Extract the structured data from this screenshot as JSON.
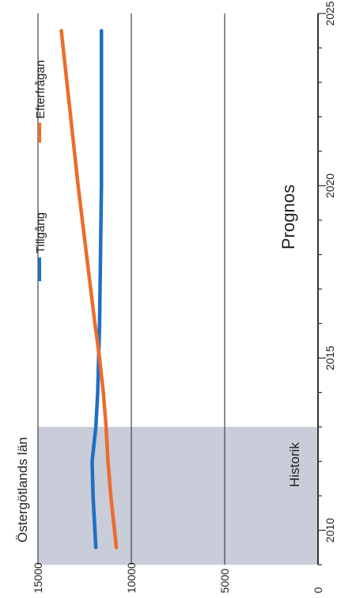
{
  "chart_data": {
    "type": "line",
    "title": "Östergötlands län",
    "x_range": [
      2009,
      2025
    ],
    "ylim": [
      0,
      15000
    ],
    "y_ticks": [
      "0",
      "5000",
      "10000",
      "15000"
    ],
    "x_ticks": [
      "2010",
      "2015",
      "2020",
      "2025"
    ],
    "grid": true,
    "legend_position": "top-right",
    "historic_range": [
      2009,
      2013
    ],
    "historic_label": "Historik",
    "forecast_label": "Prognos",
    "series": [
      {
        "name": "Tillgång",
        "color": "#1f6fc4",
        "x": [
          2009.5,
          2010,
          2011,
          2012,
          2013,
          2014,
          2015,
          2016,
          2018,
          2020,
          2022,
          2024.5
        ],
        "values": [
          11900,
          11950,
          12050,
          12100,
          11900,
          11800,
          11750,
          11700,
          11650,
          11600,
          11600,
          11600
        ]
      },
      {
        "name": "Efterfrågan",
        "color": "#ee6b2c",
        "x": [
          2009.5,
          2010,
          2011,
          2012,
          2013,
          2014,
          2015,
          2016,
          2018,
          2020,
          2022,
          2024.5
        ],
        "values": [
          10800,
          10900,
          11100,
          11250,
          11350,
          11500,
          11700,
          11950,
          12400,
          12850,
          13250,
          13750
        ]
      }
    ]
  }
}
